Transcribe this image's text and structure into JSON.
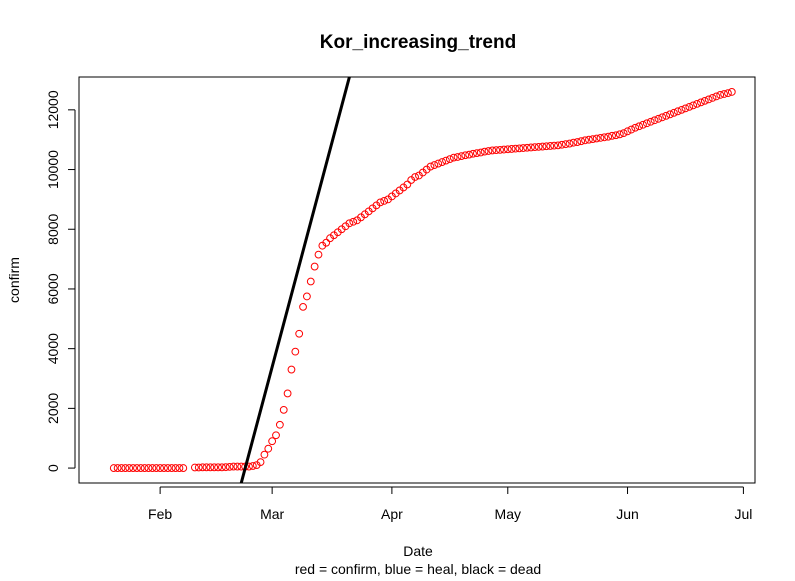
{
  "chart_data": {
    "type": "scatter",
    "title": "Kor_increasing_trend",
    "xlabel": "Date",
    "ylabel": "confirm",
    "subtitle": "red = confirm, blue = heal, black = dead",
    "x_range": [
      "2020-01-11",
      "2020-07-04"
    ],
    "ylim": [
      -500,
      13100
    ],
    "x_ticks": [
      {
        "date": "2020-02-01",
        "label": "Feb"
      },
      {
        "date": "2020-03-01",
        "label": "Mar"
      },
      {
        "date": "2020-04-01",
        "label": "Apr"
      },
      {
        "date": "2020-05-01",
        "label": "May"
      },
      {
        "date": "2020-06-01",
        "label": "Jun"
      },
      {
        "date": "2020-07-01",
        "label": "Jul"
      }
    ],
    "y_ticks": [
      "0",
      "2000",
      "4000",
      "6000",
      "8000",
      "10000",
      "12000"
    ],
    "grid": false,
    "series": [
      {
        "name": "confirm",
        "color": "#ff0000",
        "marker": "open-circle",
        "points": [
          [
            "2020-01-20",
            0
          ],
          [
            "2020-01-21",
            0
          ],
          [
            "2020-01-22",
            0
          ],
          [
            "2020-01-23",
            0
          ],
          [
            "2020-01-24",
            0
          ],
          [
            "2020-01-25",
            0
          ],
          [
            "2020-01-26",
            0
          ],
          [
            "2020-01-27",
            0
          ],
          [
            "2020-01-28",
            0
          ],
          [
            "2020-01-29",
            0
          ],
          [
            "2020-01-30",
            0
          ],
          [
            "2020-01-31",
            0
          ],
          [
            "2020-02-01",
            0
          ],
          [
            "2020-02-02",
            0
          ],
          [
            "2020-02-03",
            0
          ],
          [
            "2020-02-04",
            0
          ],
          [
            "2020-02-05",
            0
          ],
          [
            "2020-02-06",
            0
          ],
          [
            "2020-02-07",
            0
          ],
          [
            "2020-02-10",
            20
          ],
          [
            "2020-02-11",
            20
          ],
          [
            "2020-02-12",
            25
          ],
          [
            "2020-02-13",
            25
          ],
          [
            "2020-02-14",
            25
          ],
          [
            "2020-02-15",
            25
          ],
          [
            "2020-02-16",
            25
          ],
          [
            "2020-02-17",
            25
          ],
          [
            "2020-02-18",
            30
          ],
          [
            "2020-02-19",
            40
          ],
          [
            "2020-02-20",
            50
          ],
          [
            "2020-02-21",
            50
          ],
          [
            "2020-02-22",
            50
          ],
          [
            "2020-02-23",
            50
          ],
          [
            "2020-02-24",
            50
          ],
          [
            "2020-02-25",
            70
          ],
          [
            "2020-02-26",
            100
          ],
          [
            "2020-02-27",
            200
          ],
          [
            "2020-02-28",
            450
          ],
          [
            "2020-02-29",
            650
          ],
          [
            "2020-03-01",
            900
          ],
          [
            "2020-03-02",
            1100
          ],
          [
            "2020-03-03",
            1450
          ],
          [
            "2020-03-04",
            1950
          ],
          [
            "2020-03-05",
            2500
          ],
          [
            "2020-03-06",
            3300
          ],
          [
            "2020-03-07",
            3900
          ],
          [
            "2020-03-08",
            4500
          ],
          [
            "2020-03-09",
            5400
          ],
          [
            "2020-03-10",
            5750
          ],
          [
            "2020-03-11",
            6250
          ],
          [
            "2020-03-12",
            6750
          ],
          [
            "2020-03-13",
            7150
          ],
          [
            "2020-03-14",
            7450
          ],
          [
            "2020-03-15",
            7550
          ],
          [
            "2020-03-16",
            7700
          ],
          [
            "2020-03-17",
            7800
          ],
          [
            "2020-03-18",
            7900
          ],
          [
            "2020-03-19",
            8000
          ],
          [
            "2020-03-20",
            8100
          ],
          [
            "2020-03-21",
            8200
          ],
          [
            "2020-03-22",
            8250
          ],
          [
            "2020-03-23",
            8300
          ],
          [
            "2020-03-24",
            8400
          ],
          [
            "2020-03-25",
            8500
          ],
          [
            "2020-03-26",
            8600
          ],
          [
            "2020-03-27",
            8700
          ],
          [
            "2020-03-28",
            8800
          ],
          [
            "2020-03-29",
            8900
          ],
          [
            "2020-03-30",
            8950
          ],
          [
            "2020-03-31",
            9000
          ],
          [
            "2020-04-01",
            9100
          ],
          [
            "2020-04-02",
            9200
          ],
          [
            "2020-04-03",
            9300
          ],
          [
            "2020-04-04",
            9400
          ],
          [
            "2020-04-05",
            9500
          ],
          [
            "2020-04-06",
            9650
          ],
          [
            "2020-04-07",
            9750
          ],
          [
            "2020-04-08",
            9800
          ],
          [
            "2020-04-09",
            9900
          ],
          [
            "2020-04-10",
            10000
          ],
          [
            "2020-04-11",
            10100
          ],
          [
            "2020-04-12",
            10150
          ],
          [
            "2020-04-13",
            10200
          ],
          [
            "2020-04-14",
            10250
          ],
          [
            "2020-04-15",
            10300
          ],
          [
            "2020-04-16",
            10350
          ],
          [
            "2020-04-17",
            10400
          ],
          [
            "2020-04-18",
            10420
          ],
          [
            "2020-04-19",
            10450
          ],
          [
            "2020-04-20",
            10480
          ],
          [
            "2020-04-21",
            10500
          ],
          [
            "2020-04-22",
            10530
          ],
          [
            "2020-04-23",
            10550
          ],
          [
            "2020-04-24",
            10570
          ],
          [
            "2020-04-25",
            10600
          ],
          [
            "2020-04-26",
            10620
          ],
          [
            "2020-04-27",
            10640
          ],
          [
            "2020-04-28",
            10650
          ],
          [
            "2020-04-29",
            10660
          ],
          [
            "2020-04-30",
            10670
          ],
          [
            "2020-05-01",
            10680
          ],
          [
            "2020-05-02",
            10690
          ],
          [
            "2020-05-03",
            10700
          ],
          [
            "2020-05-04",
            10710
          ],
          [
            "2020-05-05",
            10720
          ],
          [
            "2020-05-06",
            10730
          ],
          [
            "2020-05-07",
            10740
          ],
          [
            "2020-05-08",
            10750
          ],
          [
            "2020-05-09",
            10760
          ],
          [
            "2020-05-10",
            10770
          ],
          [
            "2020-05-11",
            10780
          ],
          [
            "2020-05-12",
            10790
          ],
          [
            "2020-05-13",
            10800
          ],
          [
            "2020-05-14",
            10810
          ],
          [
            "2020-05-15",
            10830
          ],
          [
            "2020-05-16",
            10850
          ],
          [
            "2020-05-17",
            10870
          ],
          [
            "2020-05-18",
            10900
          ],
          [
            "2020-05-19",
            10920
          ],
          [
            "2020-05-20",
            10950
          ],
          [
            "2020-05-21",
            10980
          ],
          [
            "2020-05-22",
            11000
          ],
          [
            "2020-05-23",
            11020
          ],
          [
            "2020-05-24",
            11040
          ],
          [
            "2020-05-25",
            11060
          ],
          [
            "2020-05-26",
            11080
          ],
          [
            "2020-05-27",
            11100
          ],
          [
            "2020-05-28",
            11130
          ],
          [
            "2020-05-29",
            11150
          ],
          [
            "2020-05-30",
            11180
          ],
          [
            "2020-05-31",
            11220
          ],
          [
            "2020-06-01",
            11280
          ],
          [
            "2020-06-02",
            11340
          ],
          [
            "2020-06-03",
            11400
          ],
          [
            "2020-06-04",
            11450
          ],
          [
            "2020-06-05",
            11500
          ],
          [
            "2020-06-06",
            11550
          ],
          [
            "2020-06-07",
            11600
          ],
          [
            "2020-06-08",
            11650
          ],
          [
            "2020-06-09",
            11700
          ],
          [
            "2020-06-10",
            11750
          ],
          [
            "2020-06-11",
            11800
          ],
          [
            "2020-06-12",
            11850
          ],
          [
            "2020-06-13",
            11900
          ],
          [
            "2020-06-14",
            11950
          ],
          [
            "2020-06-15",
            12000
          ],
          [
            "2020-06-16",
            12050
          ],
          [
            "2020-06-17",
            12100
          ],
          [
            "2020-06-18",
            12150
          ],
          [
            "2020-06-19",
            12200
          ],
          [
            "2020-06-20",
            12250
          ],
          [
            "2020-06-21",
            12300
          ],
          [
            "2020-06-22",
            12350
          ],
          [
            "2020-06-23",
            12400
          ],
          [
            "2020-06-24",
            12450
          ],
          [
            "2020-06-25",
            12500
          ],
          [
            "2020-06-26",
            12530
          ],
          [
            "2020-06-27",
            12560
          ],
          [
            "2020-06-28",
            12600
          ]
        ]
      }
    ],
    "trend_line": {
      "color": "#000000",
      "points": [
        [
          "2020-02-22",
          -500
        ],
        [
          "2020-03-21",
          13100
        ]
      ]
    }
  }
}
